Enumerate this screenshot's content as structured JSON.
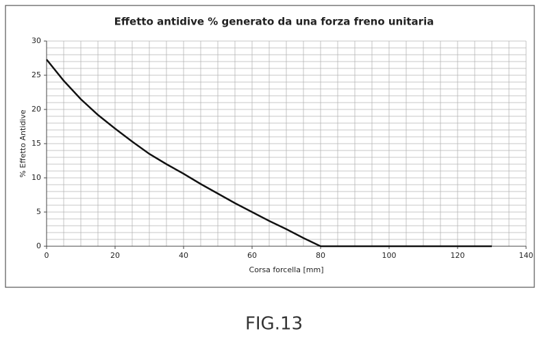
{
  "chart_data": {
    "type": "line",
    "title": "Effetto antidive % generato da una forza freno unitaria",
    "x_label": "Corsa forcella [mm]",
    "y_label": "% Effetto Antidive",
    "x": [
      0,
      5,
      10,
      15,
      20,
      25,
      30,
      35,
      40,
      45,
      50,
      55,
      60,
      65,
      70,
      75,
      80,
      130
    ],
    "series": [
      {
        "color": "#111111",
        "values": [
          27.3,
          24.2,
          21.5,
          19.2,
          17.2,
          15.3,
          13.5,
          12,
          10.6,
          9.1,
          7.7,
          6.3,
          5,
          3.7,
          2.5,
          1.2,
          0,
          0
        ]
      }
    ],
    "xlim": [
      0,
      140
    ],
    "xticks": [
      0,
      20,
      40,
      60,
      80,
      100,
      120,
      140
    ],
    "ylim": [
      0,
      30
    ],
    "yticks": [
      0,
      5,
      10,
      15,
      20,
      25,
      30
    ],
    "xgrid": [
      0,
      5,
      10,
      15,
      20,
      25,
      30,
      35,
      40,
      45,
      50,
      55,
      60,
      65,
      70,
      75,
      80,
      85,
      90,
      95,
      100,
      105,
      110,
      115,
      120,
      125,
      130,
      135,
      140
    ],
    "ygrid": [
      0,
      1,
      2,
      3,
      4,
      5,
      6,
      7,
      8,
      9,
      10,
      11,
      12,
      13,
      14,
      15,
      16,
      17,
      18,
      19,
      20,
      21,
      22,
      23,
      24,
      25,
      26,
      27,
      28,
      29,
      30
    ],
    "grid": true
  },
  "figure_label": "FIG.13"
}
